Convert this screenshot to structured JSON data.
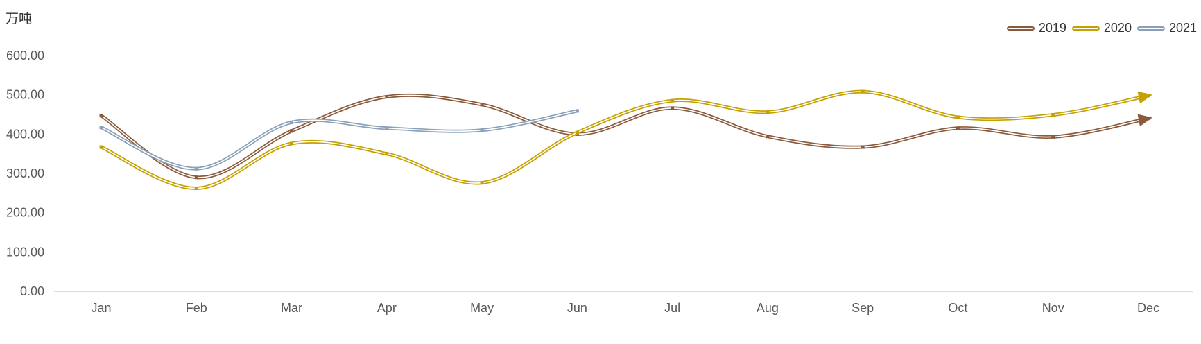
{
  "chart_data": {
    "type": "line",
    "title": "",
    "xlabel": "",
    "ylabel": "万吨",
    "ylim": [
      0,
      600
    ],
    "yticks": [
      "0.00",
      "100.00",
      "200.00",
      "300.00",
      "400.00",
      "500.00",
      "600.00"
    ],
    "categories": [
      "Jan",
      "Feb",
      "Mar",
      "Apr",
      "May",
      "Jun",
      "Jul",
      "Aug",
      "Sep",
      "Oct",
      "Nov",
      "Dec"
    ],
    "legend_position": "top-right",
    "grid": false,
    "series": [
      {
        "name": "2019",
        "color": "#8b5a3c",
        "values": [
          447,
          290,
          408,
          495,
          475,
          400,
          466,
          394,
          367,
          415,
          393,
          440
        ]
      },
      {
        "name": "2020",
        "color": "#c4a000",
        "values": [
          367,
          262,
          376,
          350,
          276,
          404,
          485,
          456,
          508,
          443,
          449,
          498
        ]
      },
      {
        "name": "2021",
        "color": "#8aa0b8",
        "values": [
          417,
          312,
          430,
          415,
          410,
          459,
          null,
          null,
          null,
          null,
          null,
          null
        ]
      }
    ]
  }
}
